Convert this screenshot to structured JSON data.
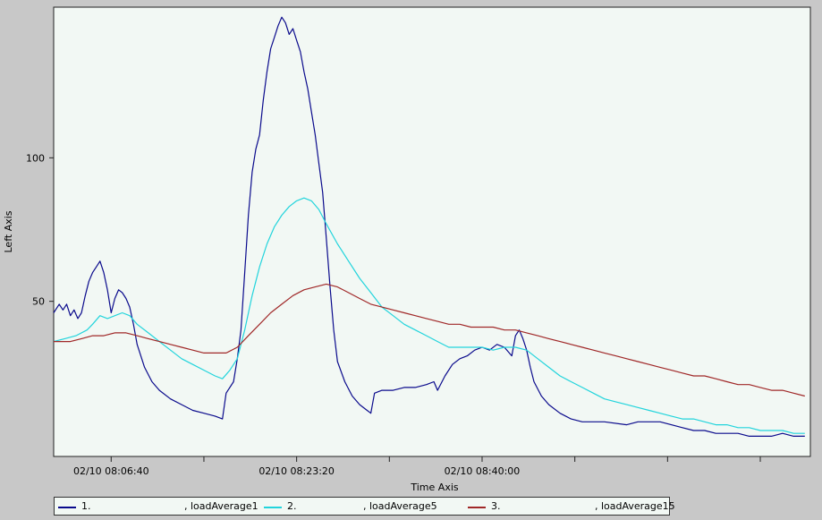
{
  "chart_data": {
    "type": "line",
    "xlabel": "Time Axis",
    "ylabel": "Left Axis",
    "x_range": [
      "02/10 08:01:30",
      "02/10 08:53:30"
    ],
    "x_ticks": [
      "02/10 08:06:40",
      "02/10 08:23:20",
      "02/10 08:40:00"
    ],
    "y_ticks": [
      50,
      100
    ],
    "ylim": [
      0,
      150
    ],
    "grid": false,
    "legend_position": "bottom",
    "plot_background": "#f2f8f4",
    "series": [
      {
        "name": "loadAverage1",
        "legend_number": "1.",
        "color": "#0a0a8c",
        "points": [
          [
            "08:01:30",
            46
          ],
          [
            "08:02:00",
            49
          ],
          [
            "08:02:20",
            47
          ],
          [
            "08:02:40",
            49
          ],
          [
            "08:03:00",
            45
          ],
          [
            "08:03:20",
            47
          ],
          [
            "08:03:40",
            44
          ],
          [
            "08:04:00",
            46
          ],
          [
            "08:04:20",
            52
          ],
          [
            "08:04:40",
            57
          ],
          [
            "08:05:00",
            60
          ],
          [
            "08:05:20",
            62
          ],
          [
            "08:05:40",
            64
          ],
          [
            "08:06:00",
            60
          ],
          [
            "08:06:20",
            54
          ],
          [
            "08:06:40",
            46
          ],
          [
            "08:07:00",
            51
          ],
          [
            "08:07:20",
            54
          ],
          [
            "08:07:40",
            53
          ],
          [
            "08:08:00",
            51
          ],
          [
            "08:08:20",
            48
          ],
          [
            "08:08:40",
            42
          ],
          [
            "08:09:00",
            35
          ],
          [
            "08:09:40",
            27
          ],
          [
            "08:10:20",
            22
          ],
          [
            "08:11:00",
            19
          ],
          [
            "08:12:00",
            16
          ],
          [
            "08:13:00",
            14
          ],
          [
            "08:14:00",
            12
          ],
          [
            "08:15:00",
            11
          ],
          [
            "08:16:00",
            10
          ],
          [
            "08:16:40",
            9
          ],
          [
            "08:17:00",
            18
          ],
          [
            "08:17:40",
            22
          ],
          [
            "08:18:00",
            30
          ],
          [
            "08:18:20",
            40
          ],
          [
            "08:18:40",
            60
          ],
          [
            "08:19:00",
            80
          ],
          [
            "08:19:20",
            95
          ],
          [
            "08:19:40",
            103
          ],
          [
            "08:20:00",
            108
          ],
          [
            "08:20:20",
            120
          ],
          [
            "08:20:40",
            130
          ],
          [
            "08:21:00",
            138
          ],
          [
            "08:21:20",
            142
          ],
          [
            "08:21:40",
            146
          ],
          [
            "08:22:00",
            149
          ],
          [
            "08:22:20",
            147
          ],
          [
            "08:22:40",
            143
          ],
          [
            "08:23:00",
            145
          ],
          [
            "08:23:20",
            141
          ],
          [
            "08:23:40",
            137
          ],
          [
            "08:24:00",
            130
          ],
          [
            "08:24:20",
            124
          ],
          [
            "08:24:40",
            116
          ],
          [
            "08:25:00",
            108
          ],
          [
            "08:25:20",
            98
          ],
          [
            "08:25:40",
            88
          ],
          [
            "08:26:00",
            72
          ],
          [
            "08:26:20",
            55
          ],
          [
            "08:26:40",
            40
          ],
          [
            "08:27:00",
            29
          ],
          [
            "08:27:40",
            22
          ],
          [
            "08:28:20",
            17
          ],
          [
            "08:29:00",
            14
          ],
          [
            "08:29:40",
            12
          ],
          [
            "08:30:00",
            11
          ],
          [
            "08:30:20",
            18
          ],
          [
            "08:31:00",
            19
          ],
          [
            "08:32:00",
            19
          ],
          [
            "08:33:00",
            20
          ],
          [
            "08:34:00",
            20
          ],
          [
            "08:35:00",
            21
          ],
          [
            "08:35:40",
            22
          ],
          [
            "08:36:00",
            19
          ],
          [
            "08:36:40",
            24
          ],
          [
            "08:37:20",
            28
          ],
          [
            "08:38:00",
            30
          ],
          [
            "08:38:40",
            31
          ],
          [
            "08:39:20",
            33
          ],
          [
            "08:40:00",
            34
          ],
          [
            "08:40:40",
            33
          ],
          [
            "08:41:20",
            35
          ],
          [
            "08:42:00",
            34
          ],
          [
            "08:42:40",
            31
          ],
          [
            "08:43:00",
            38
          ],
          [
            "08:43:20",
            40
          ],
          [
            "08:43:40",
            37
          ],
          [
            "08:44:00",
            33
          ],
          [
            "08:44:20",
            27
          ],
          [
            "08:44:40",
            22
          ],
          [
            "08:45:20",
            17
          ],
          [
            "08:46:00",
            14
          ],
          [
            "08:47:00",
            11
          ],
          [
            "08:48:00",
            9
          ],
          [
            "08:49:00",
            8
          ],
          [
            "08:51:00",
            8
          ],
          [
            "08:53:00",
            7
          ],
          [
            "08:54:00",
            8
          ],
          [
            "08:55:00",
            8
          ],
          [
            "08:56:00",
            8
          ],
          [
            "08:57:00",
            7
          ],
          [
            "08:58:00",
            6
          ],
          [
            "08:59:00",
            5
          ],
          [
            "09:00:00",
            5
          ],
          [
            "09:01:00",
            4
          ],
          [
            "09:02:00",
            4
          ],
          [
            "09:03:00",
            4
          ],
          [
            "09:04:00",
            3
          ],
          [
            "09:05:00",
            3
          ],
          [
            "09:06:00",
            3
          ],
          [
            "09:07:00",
            4
          ],
          [
            "09:08:00",
            3
          ],
          [
            "09:09:00",
            3
          ]
        ]
      },
      {
        "name": "loadAverage5",
        "legend_number": "2.",
        "color": "#22d4dc",
        "points": [
          [
            "08:01:30",
            36
          ],
          [
            "08:02:30",
            37
          ],
          [
            "08:03:30",
            38
          ],
          [
            "08:04:30",
            40
          ],
          [
            "08:05:00",
            42
          ],
          [
            "08:05:40",
            45
          ],
          [
            "08:06:20",
            44
          ],
          [
            "08:07:00",
            45
          ],
          [
            "08:07:40",
            46
          ],
          [
            "08:08:20",
            45
          ],
          [
            "08:09:00",
            42
          ],
          [
            "08:10:00",
            39
          ],
          [
            "08:11:00",
            36
          ],
          [
            "08:12:00",
            33
          ],
          [
            "08:13:00",
            30
          ],
          [
            "08:14:00",
            28
          ],
          [
            "08:15:00",
            26
          ],
          [
            "08:16:00",
            24
          ],
          [
            "08:16:40",
            23
          ],
          [
            "08:17:20",
            26
          ],
          [
            "08:18:00",
            30
          ],
          [
            "08:18:40",
            40
          ],
          [
            "08:19:20",
            52
          ],
          [
            "08:20:00",
            62
          ],
          [
            "08:20:40",
            70
          ],
          [
            "08:21:20",
            76
          ],
          [
            "08:22:00",
            80
          ],
          [
            "08:22:40",
            83
          ],
          [
            "08:23:20",
            85
          ],
          [
            "08:24:00",
            86
          ],
          [
            "08:24:40",
            85
          ],
          [
            "08:25:20",
            82
          ],
          [
            "08:26:00",
            77
          ],
          [
            "08:27:00",
            70
          ],
          [
            "08:28:00",
            64
          ],
          [
            "08:29:00",
            58
          ],
          [
            "08:30:00",
            53
          ],
          [
            "08:31:00",
            48
          ],
          [
            "08:32:00",
            45
          ],
          [
            "08:33:00",
            42
          ],
          [
            "08:34:00",
            40
          ],
          [
            "08:35:00",
            38
          ],
          [
            "08:36:00",
            36
          ],
          [
            "08:37:00",
            34
          ],
          [
            "08:38:00",
            34
          ],
          [
            "08:39:00",
            34
          ],
          [
            "08:40:00",
            34
          ],
          [
            "08:41:00",
            33
          ],
          [
            "08:42:00",
            34
          ],
          [
            "08:43:00",
            34
          ],
          [
            "08:44:00",
            33
          ],
          [
            "08:45:00",
            30
          ],
          [
            "08:46:00",
            27
          ],
          [
            "08:47:00",
            24
          ],
          [
            "08:48:00",
            22
          ],
          [
            "08:49:00",
            20
          ],
          [
            "08:50:00",
            18
          ],
          [
            "08:51:00",
            16
          ],
          [
            "08:52:00",
            15
          ],
          [
            "08:53:00",
            14
          ],
          [
            "08:54:00",
            13
          ],
          [
            "08:55:00",
            12
          ],
          [
            "08:56:00",
            11
          ],
          [
            "08:57:00",
            10
          ],
          [
            "08:58:00",
            9
          ],
          [
            "08:59:00",
            9
          ],
          [
            "09:00:00",
            8
          ],
          [
            "09:01:00",
            7
          ],
          [
            "09:02:00",
            7
          ],
          [
            "09:03:00",
            6
          ],
          [
            "09:04:00",
            6
          ],
          [
            "09:05:00",
            5
          ],
          [
            "09:06:00",
            5
          ],
          [
            "09:07:00",
            5
          ],
          [
            "09:08:00",
            4
          ],
          [
            "09:09:00",
            4
          ]
        ]
      },
      {
        "name": "loadAverage15",
        "legend_number": "3.",
        "color": "#a02828",
        "points": [
          [
            "08:01:30",
            36
          ],
          [
            "08:03:00",
            36
          ],
          [
            "08:04:00",
            37
          ],
          [
            "08:05:00",
            38
          ],
          [
            "08:06:00",
            38
          ],
          [
            "08:07:00",
            39
          ],
          [
            "08:08:00",
            39
          ],
          [
            "08:09:00",
            38
          ],
          [
            "08:10:00",
            37
          ],
          [
            "08:11:00",
            36
          ],
          [
            "08:12:00",
            35
          ],
          [
            "08:13:00",
            34
          ],
          [
            "08:14:00",
            33
          ],
          [
            "08:15:00",
            32
          ],
          [
            "08:16:00",
            32
          ],
          [
            "08:17:00",
            32
          ],
          [
            "08:18:00",
            34
          ],
          [
            "08:19:00",
            38
          ],
          [
            "08:20:00",
            42
          ],
          [
            "08:21:00",
            46
          ],
          [
            "08:22:00",
            49
          ],
          [
            "08:23:00",
            52
          ],
          [
            "08:24:00",
            54
          ],
          [
            "08:25:00",
            55
          ],
          [
            "08:26:00",
            56
          ],
          [
            "08:27:00",
            55
          ],
          [
            "08:28:00",
            53
          ],
          [
            "08:29:00",
            51
          ],
          [
            "08:30:00",
            49
          ],
          [
            "08:31:00",
            48
          ],
          [
            "08:32:00",
            47
          ],
          [
            "08:33:00",
            46
          ],
          [
            "08:34:00",
            45
          ],
          [
            "08:35:00",
            44
          ],
          [
            "08:36:00",
            43
          ],
          [
            "08:37:00",
            42
          ],
          [
            "08:38:00",
            42
          ],
          [
            "08:39:00",
            41
          ],
          [
            "08:40:00",
            41
          ],
          [
            "08:41:00",
            41
          ],
          [
            "08:42:00",
            40
          ],
          [
            "08:43:00",
            40
          ],
          [
            "08:44:00",
            39
          ],
          [
            "08:45:00",
            38
          ],
          [
            "08:46:00",
            37
          ],
          [
            "08:47:00",
            36
          ],
          [
            "08:48:00",
            35
          ],
          [
            "08:49:00",
            34
          ],
          [
            "08:50:00",
            33
          ],
          [
            "08:51:00",
            32
          ],
          [
            "08:52:00",
            31
          ],
          [
            "08:53:00",
            30
          ],
          [
            "08:54:00",
            29
          ],
          [
            "08:55:00",
            28
          ],
          [
            "08:56:00",
            27
          ],
          [
            "08:57:00",
            26
          ],
          [
            "08:58:00",
            25
          ],
          [
            "08:59:00",
            24
          ],
          [
            "09:00:00",
            24
          ],
          [
            "09:01:00",
            23
          ],
          [
            "09:02:00",
            22
          ],
          [
            "09:03:00",
            21
          ],
          [
            "09:04:00",
            21
          ],
          [
            "09:05:00",
            20
          ],
          [
            "09:06:00",
            19
          ],
          [
            "09:07:00",
            19
          ],
          [
            "09:08:00",
            18
          ],
          [
            "09:09:00",
            17
          ]
        ]
      }
    ]
  }
}
